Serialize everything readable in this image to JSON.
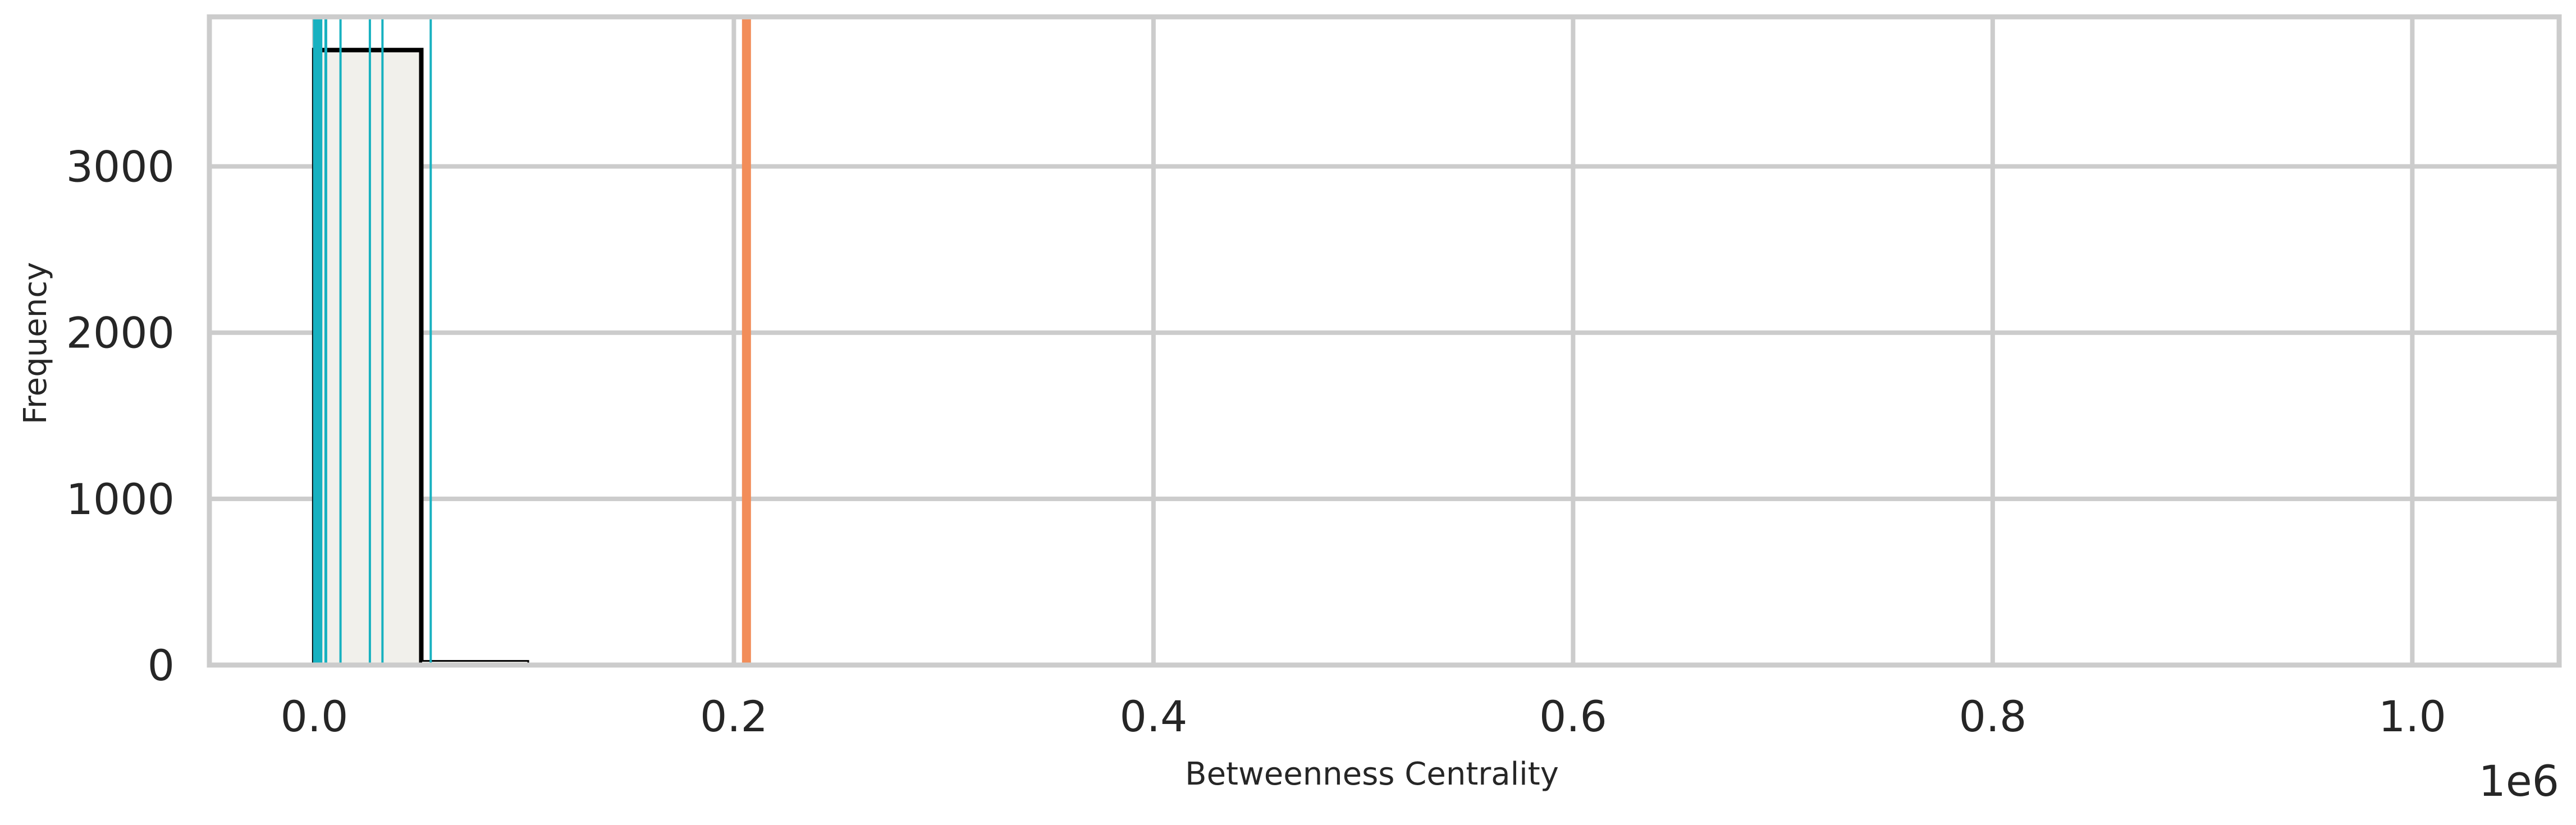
{
  "chart_data": {
    "type": "bar",
    "title": "",
    "xlabel": "Betweenness Centrality",
    "ylabel": "Frequency",
    "x_offset_label": "1e6",
    "xlim": [
      -0.05,
      1.07
    ],
    "ylim": [
      0,
      3900
    ],
    "x_ticks": [
      0.0,
      0.2,
      0.4,
      0.6,
      0.8,
      1.0
    ],
    "x_tick_labels": [
      "0.0",
      "0.2",
      "0.4",
      "0.6",
      "0.8",
      "1.0"
    ],
    "y_ticks": [
      0,
      1000,
      2000,
      3000
    ],
    "y_tick_labels": [
      "0",
      "1000",
      "2000",
      "3000"
    ],
    "grid": true,
    "bins": [
      {
        "start": 0.0,
        "end": 0.051,
        "count": 3700
      },
      {
        "start": 0.051,
        "end": 0.102,
        "count": 25
      },
      {
        "start": 0.102,
        "end": 0.154,
        "count": 10
      },
      {
        "start": 0.154,
        "end": 0.205,
        "count": 4
      },
      {
        "start": 0.205,
        "end": 0.256,
        "count": 3
      },
      {
        "start": 0.307,
        "end": 0.358,
        "count": 2
      },
      {
        "start": 0.41,
        "end": 0.461,
        "count": 2
      },
      {
        "start": 0.666,
        "end": 0.717,
        "count": 1
      },
      {
        "start": 0.974,
        "end": 1.025,
        "count": 1
      }
    ],
    "highlight_lines": [
      {
        "x": 0.001,
        "color": "#17b1c0",
        "width": 12
      },
      {
        "x": 0.0025,
        "color": "#17b1c0",
        "width": 10
      },
      {
        "x": 0.0055,
        "color": "#17b1c0",
        "width": 5
      },
      {
        "x": 0.0125,
        "color": "#17b1c0",
        "width": 4
      },
      {
        "x": 0.0265,
        "color": "#17b1c0",
        "width": 4
      },
      {
        "x": 0.0325,
        "color": "#17b1c0",
        "width": 4
      },
      {
        "x": 0.0555,
        "color": "#17b1c0",
        "width": 4
      },
      {
        "x": 0.206,
        "color": "#f28d59",
        "width": 16
      }
    ],
    "colors": {
      "bar_fill": "#f1f0eb",
      "bar_edge_first": "#000000",
      "bar_edge": "#000000",
      "grid": "#cccccc",
      "spine": "#cccccc",
      "text": "#262626"
    }
  }
}
